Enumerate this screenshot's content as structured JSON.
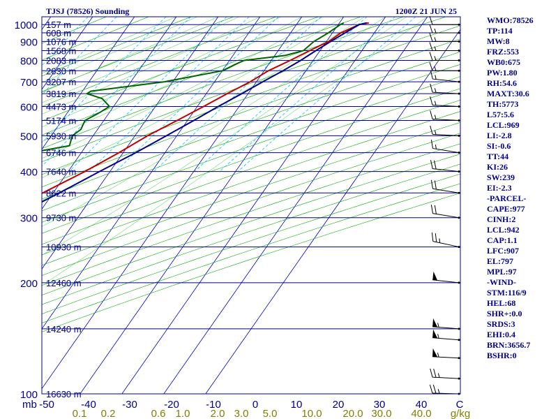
{
  "header": {
    "station": "TJSJ (78526) Sounding",
    "time": "1200Z 21 JUN 25"
  },
  "colors": {
    "background": "#ffffff",
    "frame": "#00008b",
    "isobar": "#00008b",
    "isotherm": "#0000cd",
    "dry_adiabat": "#00aa00",
    "moist_adiabat": "#32cd32",
    "mixing_ratio": "#00bfff",
    "temperature": "#c00000",
    "dewpoint": "#006400",
    "parcel": "#00008b",
    "mixing_label": "#808000",
    "stats_text": "#00008b"
  },
  "stats": [
    "WMO:78526",
    "TP:114",
    "MW:8",
    "FRZ:553",
    "WB0:675",
    "PW:1.80",
    "RH:54.6",
    "MAXT:30.6",
    "TH:5773",
    "L57:5.6",
    "LCL:969",
    "LI:-2.8",
    "SI:-0.6",
    "TT:44",
    "KI:26",
    "SW:239",
    "EI:-2.3",
    "-PARCEL-",
    "CAPE:977",
    "CINH:2",
    "LCL:942",
    "CAP:1.1",
    "LFC:907",
    "EL:797",
    "MPL:97",
    "-WIND-",
    "STM:116/9",
    "HEL:68",
    "SHR+:0.0",
    "SRDS:3",
    "EHI:0.4",
    "BRN:3656.7",
    "BSHR:0"
  ],
  "chart_data": {
    "type": "skew-t",
    "pressure_unit_label": "mb",
    "mixing_unit_label": "g/kg",
    "temp_tick_labels": [
      "-50",
      "-40",
      "-30",
      "-20",
      "-10",
      "0",
      "10",
      "20",
      "30",
      "40",
      "C"
    ],
    "mixing_ratio_labels": [
      "0.1",
      "0.2",
      "0.6",
      "1.0",
      "2.0",
      "3.0",
      "5.0",
      "10.0",
      "20.0",
      "30.0",
      "40.0"
    ],
    "pressure_levels": [
      100,
      150,
      200,
      250,
      300,
      350,
      400,
      450,
      500,
      550,
      600,
      650,
      700,
      750,
      800,
      850,
      900,
      950,
      1000
    ],
    "pressure_tick_labels": [
      "100",
      "200",
      "300",
      "400",
      "500",
      "600",
      "700",
      "800",
      "900",
      "1000"
    ],
    "height_labels": [
      {
        "p": 100,
        "label": "16630 m"
      },
      {
        "p": 150,
        "label": "14240 m"
      },
      {
        "p": 200,
        "label": "12460 m"
      },
      {
        "p": 250,
        "label": "10930 m"
      },
      {
        "p": 300,
        "label": "9730 m"
      },
      {
        "p": 350,
        "label": "8622 m"
      },
      {
        "p": 400,
        "label": "7640 m"
      },
      {
        "p": 450,
        "label": "6746 m"
      },
      {
        "p": 500,
        "label": "5930 m"
      },
      {
        "p": 550,
        "label": "5174 m"
      },
      {
        "p": 600,
        "label": "4473 m"
      },
      {
        "p": 650,
        "label": "3819 m"
      },
      {
        "p": 700,
        "label": "3207 m"
      },
      {
        "p": 750,
        "label": "2630 m"
      },
      {
        "p": 800,
        "label": "2083 m"
      },
      {
        "p": 850,
        "label": "1568 m"
      },
      {
        "p": 900,
        "label": "1076 m"
      },
      {
        "p": 950,
        "label": "608 m"
      },
      {
        "p": 1000,
        "label": "157 m"
      }
    ],
    "temperature": [
      {
        "p": 1011,
        "t": 27.0
      },
      {
        "p": 1000,
        "t": 25.0
      },
      {
        "p": 950,
        "t": 22.0
      },
      {
        "p": 900,
        "t": 20.5
      },
      {
        "p": 850,
        "t": 17.5
      },
      {
        "p": 800,
        "t": 14.5
      },
      {
        "p": 750,
        "t": 11.0
      },
      {
        "p": 700,
        "t": 8.5
      },
      {
        "p": 650,
        "t": 5.0
      },
      {
        "p": 600,
        "t": 1.5
      },
      {
        "p": 550,
        "t": -2.5
      },
      {
        "p": 500,
        "t": -7.0
      },
      {
        "p": 450,
        "t": -11.0
      },
      {
        "p": 400,
        "t": -16.0
      },
      {
        "p": 350,
        "t": -22.5
      },
      {
        "p": 300,
        "t": -30.5
      },
      {
        "p": 250,
        "t": -41.0
      },
      {
        "p": 200,
        "t": -53.0
      },
      {
        "p": 150,
        "t": -69.0
      },
      {
        "p": 125,
        "t": -73.0
      },
      {
        "p": 100,
        "t": -72.0
      }
    ],
    "dewpoint": [
      {
        "p": 1011,
        "t": 21.0
      },
      {
        "p": 1000,
        "t": 20.5
      },
      {
        "p": 950,
        "t": 19.0
      },
      {
        "p": 900,
        "t": 17.0
      },
      {
        "p": 850,
        "t": 16.0
      },
      {
        "p": 825,
        "t": 12.5
      },
      {
        "p": 800,
        "t": 3.5
      },
      {
        "p": 780,
        "t": 2.0
      },
      {
        "p": 750,
        "t": 0.0
      },
      {
        "p": 700,
        "t": -12.0
      },
      {
        "p": 660,
        "t": -28.0
      },
      {
        "p": 650,
        "t": -28.5
      },
      {
        "p": 630,
        "t": -24.0
      },
      {
        "p": 600,
        "t": -21.0
      },
      {
        "p": 575,
        "t": -22.5
      },
      {
        "p": 550,
        "t": -24.5
      },
      {
        "p": 520,
        "t": -24.0
      },
      {
        "p": 500,
        "t": -25.0
      },
      {
        "p": 470,
        "t": -24.0
      },
      {
        "p": 450,
        "t": -32.0
      },
      {
        "p": 420,
        "t": -35.5
      },
      {
        "p": 400,
        "t": -42.0
      },
      {
        "p": 380,
        "t": -28.0
      },
      {
        "p": 350,
        "t": -28.5
      },
      {
        "p": 300,
        "t": -42.0
      },
      {
        "p": 250,
        "t": -60.0
      },
      {
        "p": 200,
        "t": -74.0
      },
      {
        "p": 150,
        "t": -88.0
      },
      {
        "p": 125,
        "t": -90.0
      },
      {
        "p": 100,
        "t": -89.0
      }
    ],
    "parcel": [
      {
        "p": 1011,
        "t": 26.5
      },
      {
        "p": 1000,
        "t": 25.0
      },
      {
        "p": 950,
        "t": 23.0
      },
      {
        "p": 900,
        "t": 21.0
      },
      {
        "p": 850,
        "t": 19.0
      },
      {
        "p": 800,
        "t": 17.0
      },
      {
        "p": 750,
        "t": 14.5
      },
      {
        "p": 700,
        "t": 11.5
      },
      {
        "p": 650,
        "t": 8.5
      },
      {
        "p": 600,
        "t": 5.0
      },
      {
        "p": 550,
        "t": 1.5
      },
      {
        "p": 500,
        "t": -2.5
      },
      {
        "p": 450,
        "t": -7.0
      },
      {
        "p": 400,
        "t": -12.5
      },
      {
        "p": 350,
        "t": -18.5
      },
      {
        "p": 300,
        "t": -26.0
      },
      {
        "p": 250,
        "t": -36.0
      },
      {
        "p": 200,
        "t": -48.0
      },
      {
        "p": 150,
        "t": -63.0
      },
      {
        "p": 125,
        "t": -72.0
      }
    ],
    "wind_barbs": [
      {
        "p": 100,
        "dir": 85,
        "spd": 25
      },
      {
        "p": 110,
        "dir": 80,
        "spd": 25
      },
      {
        "p": 125,
        "dir": 80,
        "spd": 55
      },
      {
        "p": 140,
        "dir": 75,
        "spd": 55
      },
      {
        "p": 150,
        "dir": 75,
        "spd": 55
      },
      {
        "p": 200,
        "dir": 70,
        "spd": 50
      },
      {
        "p": 250,
        "dir": 50,
        "spd": 25
      },
      {
        "p": 300,
        "dir": 60,
        "spd": 20
      },
      {
        "p": 350,
        "dir": 60,
        "spd": 20
      },
      {
        "p": 400,
        "dir": 70,
        "spd": 20
      },
      {
        "p": 450,
        "dir": 60,
        "spd": 15
      },
      {
        "p": 500,
        "dir": 80,
        "spd": 15
      },
      {
        "p": 550,
        "dir": 80,
        "spd": 15
      },
      {
        "p": 600,
        "dir": 80,
        "spd": 15
      },
      {
        "p": 650,
        "dir": 80,
        "spd": 15
      },
      {
        "p": 700,
        "dir": 70,
        "spd": 15
      },
      {
        "p": 750,
        "dir": 90,
        "spd": 15
      },
      {
        "p": 800,
        "dir": 90,
        "spd": 15
      },
      {
        "p": 850,
        "dir": 90,
        "spd": 15
      },
      {
        "p": 900,
        "dir": 90,
        "spd": 15
      },
      {
        "p": 950,
        "dir": 90,
        "spd": 15
      },
      {
        "p": 1000,
        "dir": 90,
        "spd": 10
      }
    ],
    "temp_range": [
      -50,
      50
    ],
    "pressure_range": [
      1050,
      100
    ]
  }
}
